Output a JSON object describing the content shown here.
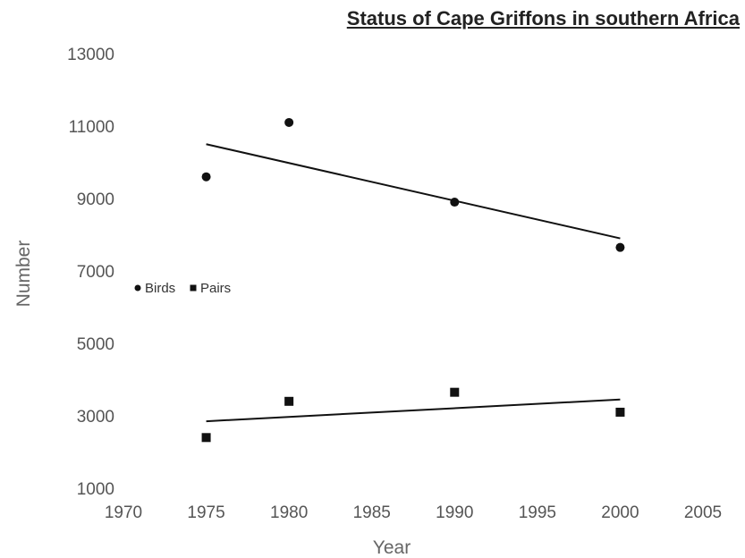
{
  "chart_data": {
    "type": "scatter",
    "title": "Status of Cape Griffons in southern Africa",
    "xlabel": "Year",
    "ylabel": "Number",
    "xlim": [
      1970,
      2005
    ],
    "ylim": [
      1000,
      13000
    ],
    "x_ticks": [
      1970,
      1975,
      1980,
      1985,
      1990,
      1995,
      2000,
      2005
    ],
    "y_ticks": [
      1000,
      3000,
      5000,
      7000,
      9000,
      11000,
      13000
    ],
    "grid": false,
    "legend_position": "left",
    "series": [
      {
        "name": "Birds",
        "marker": "circle",
        "color": "#111111",
        "points": [
          [
            1975,
            9600
          ],
          [
            1980,
            11100
          ],
          [
            1990,
            8900
          ],
          [
            2000,
            7650
          ]
        ],
        "trendline": [
          [
            1975,
            10500
          ],
          [
            2000,
            7900
          ]
        ]
      },
      {
        "name": "Pairs",
        "marker": "square",
        "color": "#111111",
        "points": [
          [
            1975,
            2400
          ],
          [
            1980,
            3400
          ],
          [
            1990,
            3650
          ],
          [
            2000,
            3100
          ]
        ],
        "trendline": [
          [
            1975,
            2850
          ],
          [
            2000,
            3450
          ]
        ]
      }
    ]
  }
}
